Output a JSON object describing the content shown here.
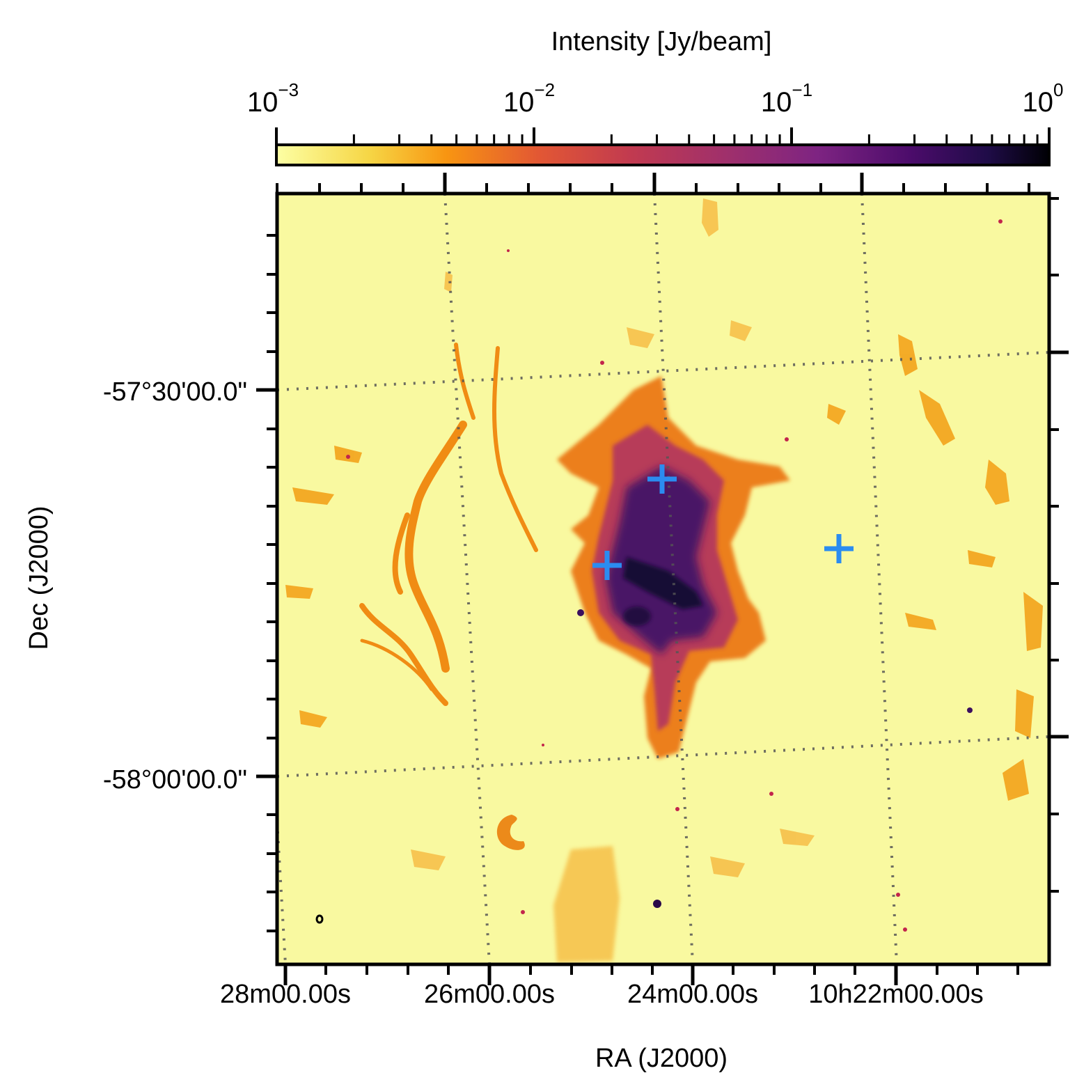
{
  "colorbar": {
    "label": "Intensity [Jy/beam]",
    "scale": "log",
    "colormap": "inferno_r",
    "range": [
      0.001,
      1
    ],
    "ticks": [
      {
        "base": "10",
        "exp": "−3"
      },
      {
        "base": "10",
        "exp": "−2"
      },
      {
        "base": "10",
        "exp": "−1"
      },
      {
        "base": "10",
        "exp": "0"
      }
    ]
  },
  "axes": {
    "xlabel": "RA (J2000)",
    "ylabel": "Dec (J2000)",
    "x_ticks": [
      "28m00.00s",
      "26m00.00s",
      "24m00.00s",
      "10h22m00.00s"
    ],
    "y_ticks": [
      "-57°30'00.0\"",
      "-58°00'00.0\""
    ],
    "grid": "dotted"
  },
  "markers": {
    "type": "cross",
    "color": "#2b8cf0",
    "count": 3
  },
  "colors": {
    "background": "#f9f9a0",
    "faint_emission": "#f3a31b",
    "bright_emission": "#2c0c52"
  }
}
